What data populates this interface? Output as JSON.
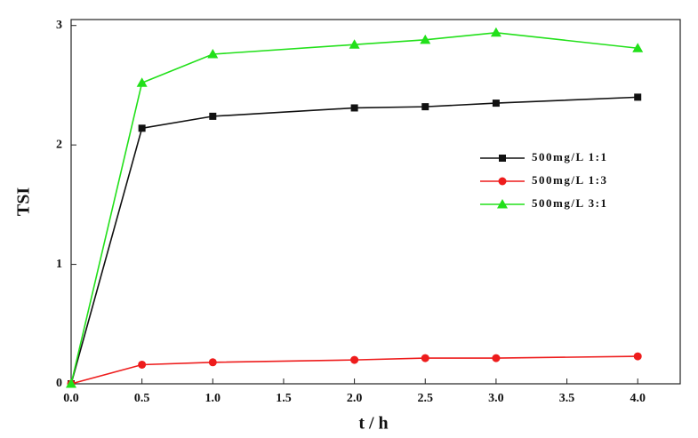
{
  "chart_data": {
    "type": "line",
    "x_label": "t / h",
    "y_label": "TSI",
    "xlim": [
      0,
      4.3
    ],
    "ylim": [
      0,
      3.05
    ],
    "xticks": [
      {
        "value": 0,
        "label": "0.0"
      },
      {
        "value": 0.5,
        "label": "0.5"
      },
      {
        "value": 1,
        "label": "1.0"
      },
      {
        "value": 1.5,
        "label": "1.5"
      },
      {
        "value": 2,
        "label": "2.0"
      },
      {
        "value": 2.5,
        "label": "2.5"
      },
      {
        "value": 3,
        "label": "3.0"
      },
      {
        "value": 3.5,
        "label": "3.5"
      },
      {
        "value": 4,
        "label": "4.0"
      }
    ],
    "yticks": [
      0,
      1,
      2,
      3
    ],
    "x": [
      0,
      0.5,
      1.0,
      2.0,
      2.5,
      3.0,
      4.0
    ],
    "series": [
      {
        "name": "500mg/L 1:1",
        "color": "#111111",
        "marker": "square",
        "values": [
          0,
          2.14,
          2.24,
          2.31,
          2.32,
          2.35,
          2.4
        ]
      },
      {
        "name": "500mg/L 1:3",
        "color": "#ee1c1c",
        "marker": "circle",
        "values": [
          0,
          0.16,
          0.18,
          0.2,
          0.215,
          0.215,
          0.23
        ]
      },
      {
        "name": "500mg/L 3:1",
        "color": "#22e01a",
        "marker": "triangle",
        "values": [
          0,
          2.52,
          2.76,
          2.84,
          2.88,
          2.94,
          2.81
        ]
      }
    ]
  }
}
